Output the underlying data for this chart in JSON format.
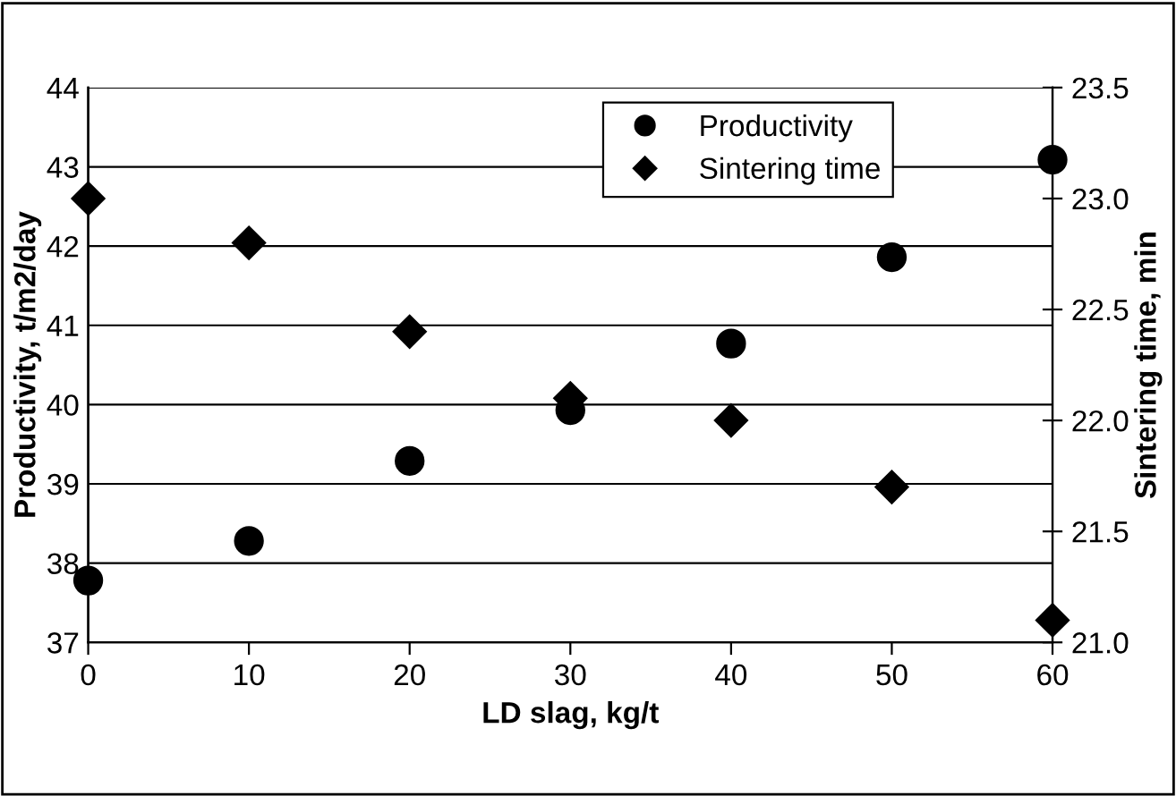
{
  "chart_data": {
    "type": "scatter",
    "xlabel": "LD slag, kg/t",
    "ylabel": "Productivity, t/m2/day",
    "y2label": "Sintering time, min",
    "x": [
      0,
      10,
      20,
      30,
      40,
      50,
      60
    ],
    "series": [
      {
        "name": "Productivity",
        "color": "#000000",
        "marker": "circle",
        "values": [
          37.78,
          38.28,
          39.29,
          39.93,
          40.77,
          41.86,
          43.09
        ]
      },
      {
        "name": "Sintering time",
        "color": "#000000",
        "marker": "diamond",
        "axis": "y2",
        "values": [
          23.0,
          22.8,
          22.4,
          22.1,
          22.0,
          21.7,
          21.1
        ]
      }
    ],
    "xlim": [
      0,
      60
    ],
    "xticks": [
      0,
      10,
      20,
      30,
      40,
      50,
      60
    ],
    "ylim": [
      37,
      44
    ],
    "yticks": [
      37,
      38,
      39,
      40,
      41,
      42,
      43,
      44
    ],
    "y2lim": [
      21.0,
      23.5
    ],
    "y2ticks": [
      {
        "value": 21.0,
        "label": "21.0"
      },
      {
        "value": 21.5,
        "label": "21.5"
      },
      {
        "value": 22.0,
        "label": "22.0"
      },
      {
        "value": 22.5,
        "label": "22.5"
      },
      {
        "value": 23.0,
        "label": "23.0"
      },
      {
        "value": 23.5,
        "label": "23.5"
      }
    ],
    "grid": "y",
    "legend": "top right"
  }
}
